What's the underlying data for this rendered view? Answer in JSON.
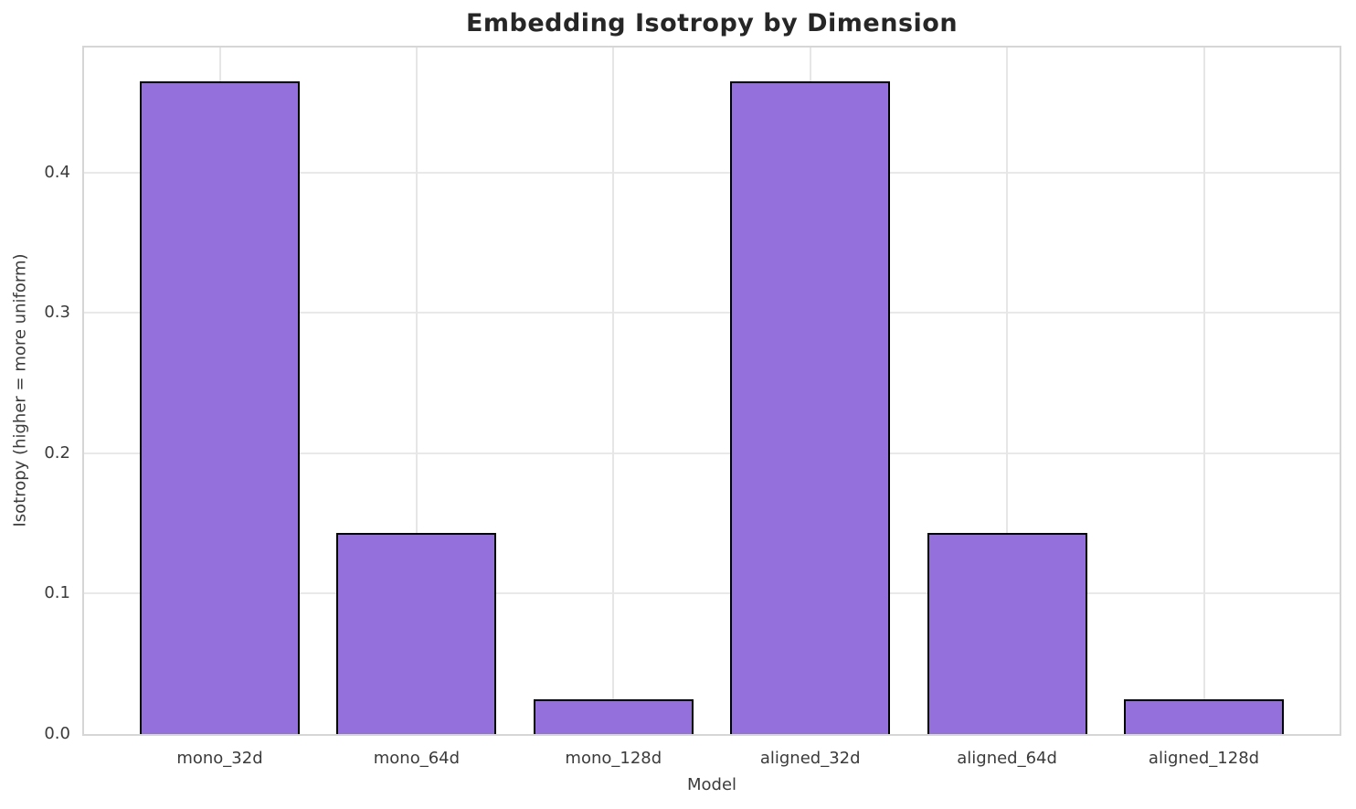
{
  "chart_data": {
    "type": "bar",
    "title": "Embedding Isotropy by Dimension",
    "xlabel": "Model",
    "ylabel": "Isotropy (higher = more uniform)",
    "categories": [
      "mono_32d",
      "mono_64d",
      "mono_128d",
      "aligned_32d",
      "aligned_64d",
      "aligned_128d"
    ],
    "values": [
      0.465,
      0.143,
      0.025,
      0.465,
      0.143,
      0.025
    ],
    "ylim": [
      0,
      0.489
    ],
    "yticks": [
      0.0,
      0.1,
      0.2,
      0.3,
      0.4
    ],
    "ytick_labels": [
      "0.0",
      "0.1",
      "0.2",
      "0.3",
      "0.4"
    ],
    "grid": true,
    "legend": "none",
    "bar_color": "#9370DB",
    "bar_edge_color": "#000000"
  }
}
